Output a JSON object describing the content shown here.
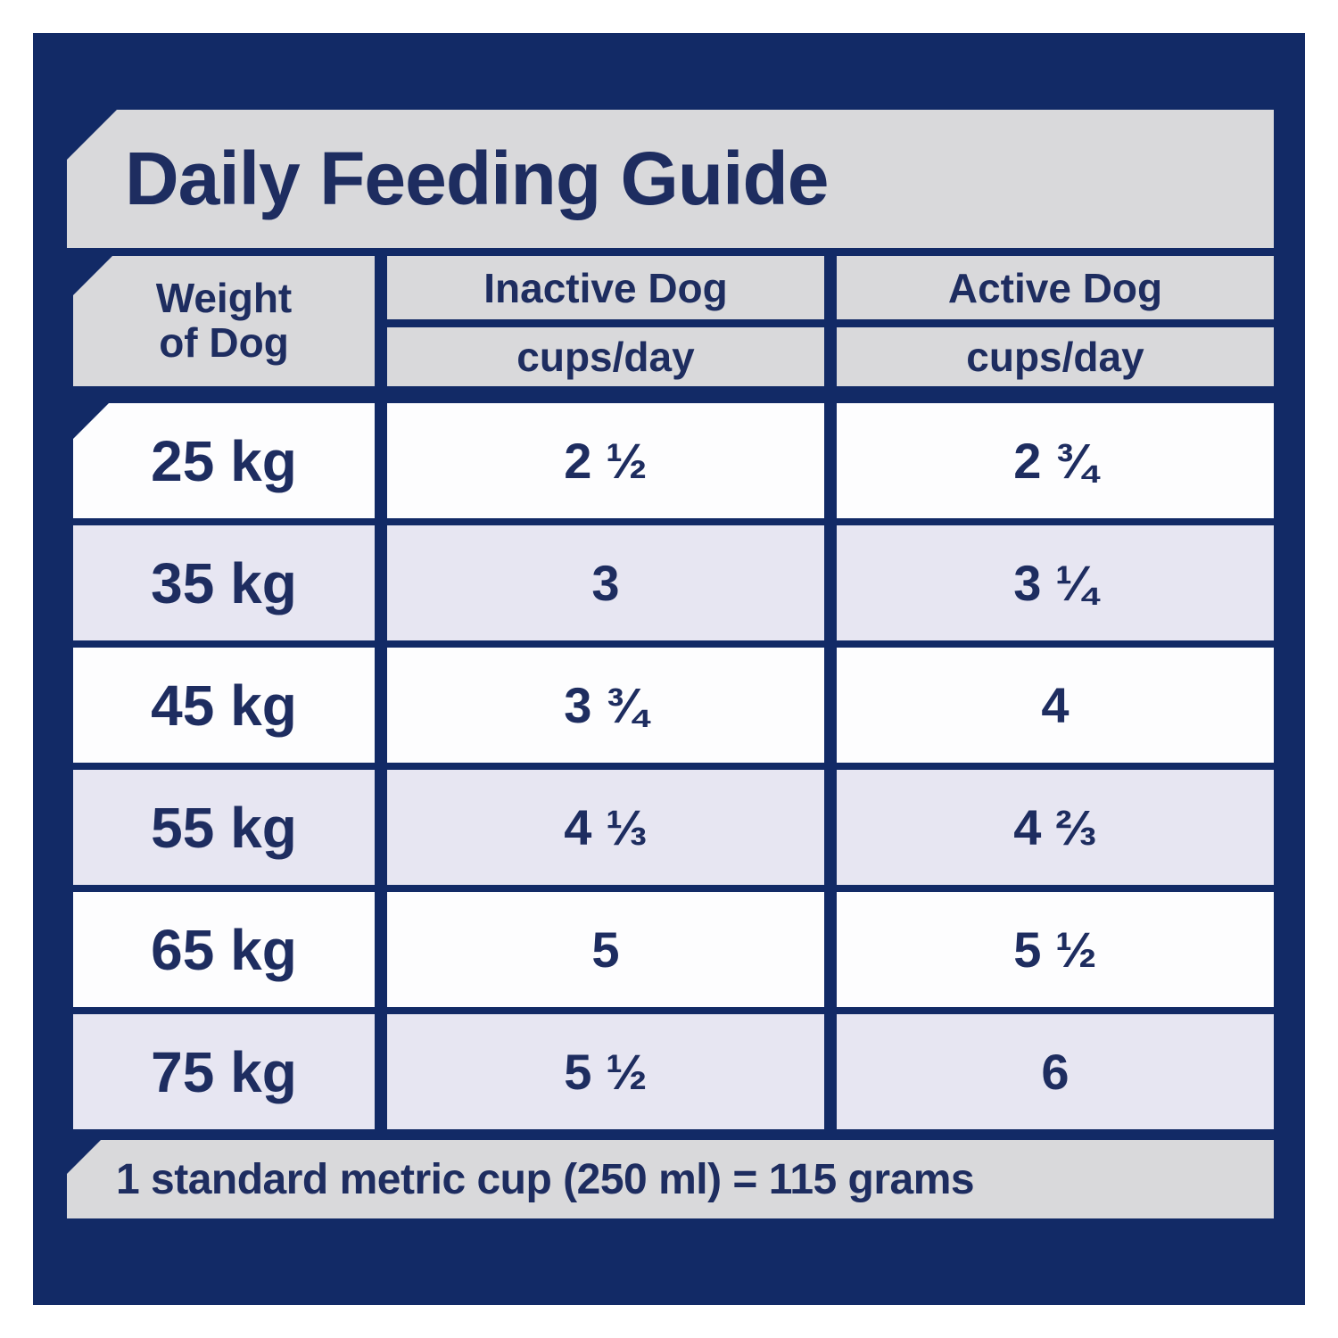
{
  "title": "Daily Feeding Guide",
  "header": {
    "weight_line1": "Weight",
    "weight_line2": "of Dog",
    "inactive_label": "Inactive Dog",
    "inactive_sub": "cups/day",
    "active_label": "Active Dog",
    "active_sub": "cups/day"
  },
  "rows": [
    {
      "weight": "25 kg",
      "inactive": "2 ½",
      "active": "2 ¾"
    },
    {
      "weight": "35 kg",
      "inactive": "3",
      "active": "3 ¼"
    },
    {
      "weight": "45 kg",
      "inactive": "3 ¾",
      "active": "4"
    },
    {
      "weight": "55 kg",
      "inactive": "4 ⅓",
      "active": "4 ⅔"
    },
    {
      "weight": "65 kg",
      "inactive": "5",
      "active": "5 ½"
    },
    {
      "weight": "75 kg",
      "inactive": "5 ½",
      "active": "6"
    }
  ],
  "footnote": "1 standard metric cup (250 ml) = 115 grams",
  "colors": {
    "panel_navy": "#122a66",
    "banner_gray": "#d9d9db",
    "row_white": "#fdfdfe",
    "row_lavender": "#e7e6f2",
    "text_navy": "#1e2d60"
  }
}
